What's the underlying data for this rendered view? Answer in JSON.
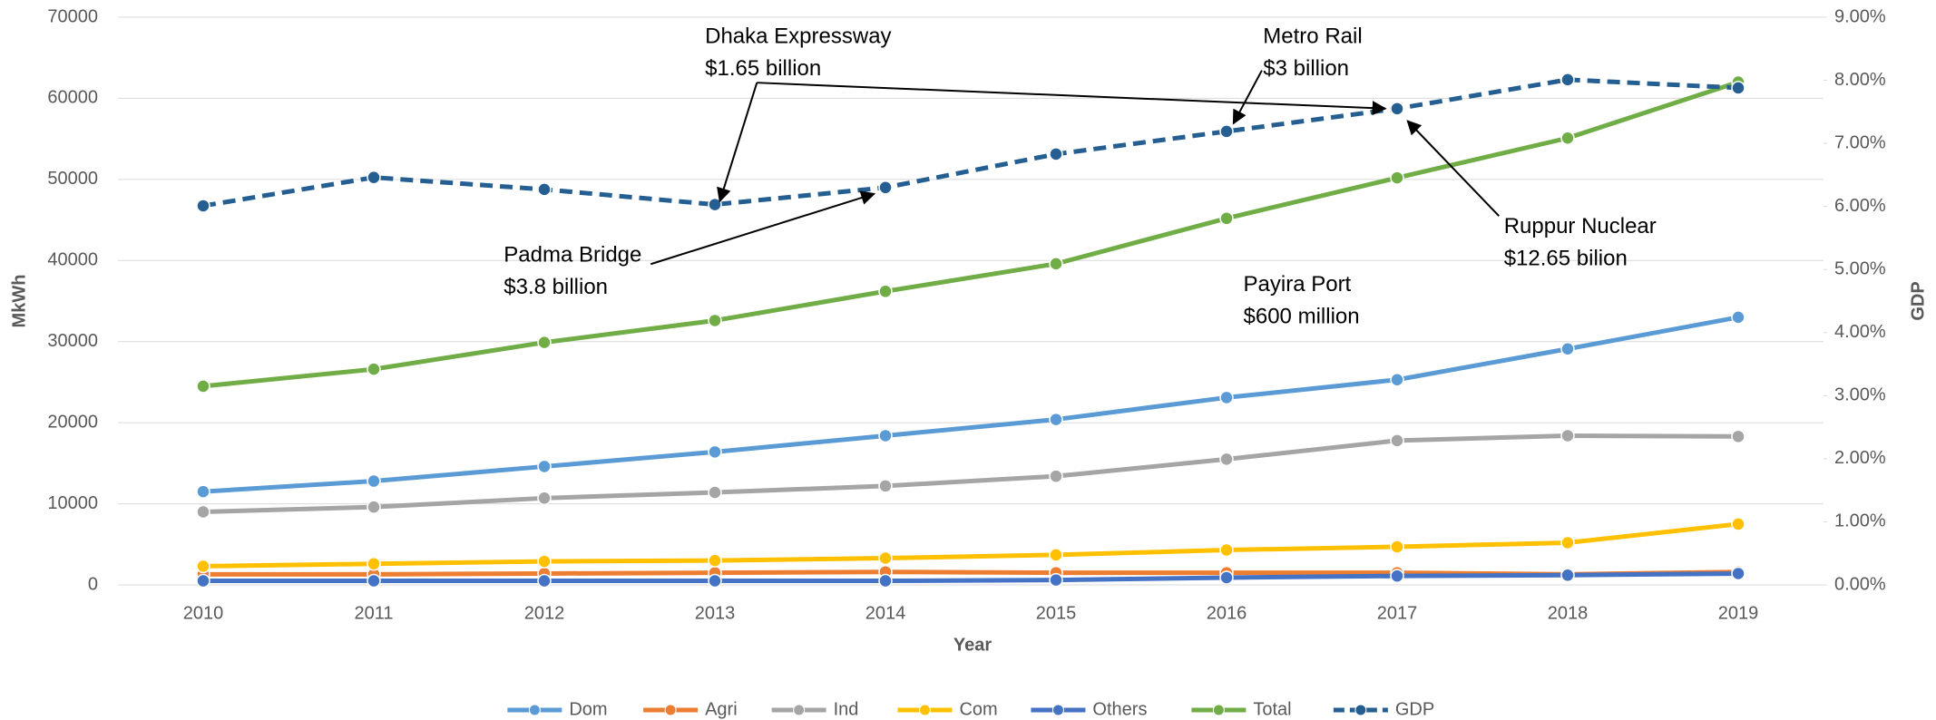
{
  "chart_data": {
    "type": "line",
    "x_label": "Year",
    "y_label": "MkWh",
    "y2_label": "GDP",
    "categories": [
      "2010",
      "2011",
      "2012",
      "2013",
      "2014",
      "2015",
      "2016",
      "2017",
      "2018",
      "2019"
    ],
    "ylim": [
      0,
      70000
    ],
    "yticks": [
      0,
      10000,
      20000,
      30000,
      40000,
      50000,
      60000,
      70000
    ],
    "y2lim": [
      0,
      9
    ],
    "y2ticks": [
      {
        "value": 0,
        "label": "0.00%"
      },
      {
        "value": 1,
        "label": "1.00%"
      },
      {
        "value": 2,
        "label": "2.00%"
      },
      {
        "value": 3,
        "label": "3.00%"
      },
      {
        "value": 4,
        "label": "4.00%"
      },
      {
        "value": 5,
        "label": "5.00%"
      },
      {
        "value": 6,
        "label": "6.00%"
      },
      {
        "value": 7,
        "label": "7.00%"
      },
      {
        "value": 8,
        "label": "8.00%"
      },
      {
        "value": 9,
        "label": "9.00%"
      }
    ],
    "grid": true,
    "legend": "bottom",
    "series": [
      {
        "name": "Dom",
        "color": "#5b9bd5",
        "values": [
          11500,
          12800,
          14600,
          16400,
          18400,
          20400,
          23100,
          25300,
          29100,
          33000
        ]
      },
      {
        "name": "Agri",
        "color": "#ed7d31",
        "values": [
          1300,
          1300,
          1400,
          1500,
          1600,
          1500,
          1500,
          1500,
          1300,
          1600
        ]
      },
      {
        "name": "Ind",
        "color": "#a5a5a5",
        "values": [
          9000,
          9600,
          10700,
          11400,
          12200,
          13400,
          15500,
          17800,
          18400,
          18300
        ]
      },
      {
        "name": "Com",
        "color": "#ffc000",
        "values": [
          2300,
          2600,
          2900,
          3000,
          3300,
          3700,
          4300,
          4700,
          5200,
          7500
        ]
      },
      {
        "name": "Others",
        "color": "#4472c4",
        "values": [
          500,
          500,
          500,
          500,
          500,
          600,
          900,
          1100,
          1200,
          1400
        ]
      },
      {
        "name": "Total",
        "color": "#70ad47",
        "values": [
          24500,
          26600,
          29900,
          32600,
          36200,
          39600,
          45200,
          50200,
          55100,
          62000
        ]
      },
      {
        "name": "GDP",
        "color": "#255e91",
        "axis": "y2",
        "dashed": true,
        "values": [
          6.01,
          6.46,
          6.27,
          6.03,
          6.3,
          6.83,
          7.19,
          7.55,
          8.01,
          7.88
        ]
      }
    ],
    "annotations": [
      [
        "Dhaka Expressway",
        "$1.65 billion"
      ],
      [
        "Metro Rail",
        "$3 billion"
      ],
      [
        "Padma Bridge",
        "$3.8 billion"
      ],
      [
        "Ruppur Nuclear",
        "$12.65 bilion"
      ],
      [
        "Payira Port",
        "$600 million"
      ]
    ]
  }
}
